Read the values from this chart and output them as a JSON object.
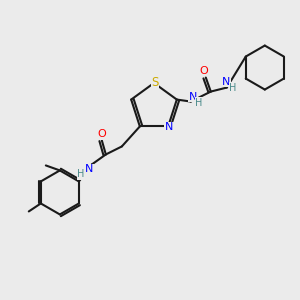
{
  "bg_color": "#ebebeb",
  "bond_color": "#1a1a1a",
  "bond_lw": 1.5,
  "atom_colors": {
    "N": "#0000ff",
    "O": "#ff0000",
    "S": "#ccaa00",
    "H": "#4a8a8a",
    "C": "#1a1a1a"
  },
  "font_size": 7.5
}
